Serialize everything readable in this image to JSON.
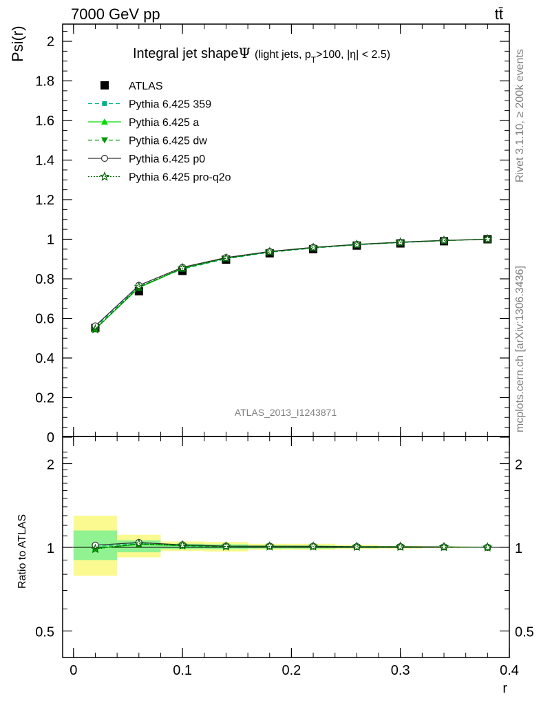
{
  "header": {
    "energy_label": "7000 GeV pp",
    "process_label": "tt̄",
    "rivet_label": "Rivet 3.1.10, ≥ 200k events",
    "mcplots_label": "mcplots.cern.ch [arXiv:1306.3436]"
  },
  "chart_data": [
    {
      "type": "line",
      "title": "Integral jet shape",
      "title_symbol": "Ψ",
      "subtitle": "(light jets, p",
      "subtitle_sub": "T",
      "subtitle_tail": ">100, |η| < 2.5)",
      "watermark": "ATLAS_2013_I1243871",
      "xlabel": "r",
      "ylabel": "Psi(r)",
      "xlim": [
        -0.01,
        0.4
      ],
      "ylim": [
        0,
        2.1
      ],
      "x_ticks": [
        0,
        0.1,
        0.2,
        0.3,
        0.4
      ],
      "x_tick_labels": [
        "0",
        "0.1",
        "0.2",
        "0.3",
        "0.4"
      ],
      "y_ticks": [
        0,
        0.2,
        0.4,
        0.6,
        0.8,
        1,
        1.2,
        1.4,
        1.6,
        1.8,
        2
      ],
      "y_tick_labels": [
        "0",
        "0.2",
        "0.4",
        "0.6",
        "0.8",
        "1",
        "1.2",
        "1.4",
        "1.6",
        "1.8",
        "2"
      ],
      "x": [
        0.02,
        0.06,
        0.1,
        0.14,
        0.18,
        0.22,
        0.26,
        0.3,
        0.34,
        0.38
      ],
      "legend": [
        "ATLAS",
        "Pythia 6.425 359",
        "Pythia 6.425 a",
        "Pythia 6.425 dw",
        "Pythia 6.425 p0",
        "Pythia 6.425 pro-q2o"
      ],
      "series": [
        {
          "name": "ATLAS",
          "color": "#000000",
          "marker": "square",
          "line": "none",
          "values": [
            0.552,
            0.737,
            0.84,
            0.897,
            0.929,
            0.95,
            0.968,
            0.979,
            0.99,
            1.0
          ]
        },
        {
          "name": "Pythia 6.425 359",
          "color": "#00b38a",
          "marker": "small-square",
          "line": "dashed",
          "values": [
            0.556,
            0.761,
            0.849,
            0.901,
            0.934,
            0.955,
            0.972,
            0.983,
            0.993,
            1.0
          ]
        },
        {
          "name": "Pythia 6.425 a",
          "color": "#00dd00",
          "marker": "triangle-up",
          "line": "solid",
          "values": [
            0.546,
            0.755,
            0.852,
            0.905,
            0.937,
            0.958,
            0.974,
            0.985,
            0.994,
            1.0
          ]
        },
        {
          "name": "Pythia 6.425 dw",
          "color": "#009900",
          "marker": "triangle-down",
          "line": "dashed",
          "values": [
            0.548,
            0.758,
            0.853,
            0.904,
            0.936,
            0.957,
            0.973,
            0.984,
            0.993,
            1.0
          ]
        },
        {
          "name": "Pythia 6.425 p0",
          "color": "#333333",
          "marker": "open-circle",
          "line": "solid",
          "values": [
            0.562,
            0.767,
            0.858,
            0.907,
            0.938,
            0.959,
            0.974,
            0.985,
            0.994,
            1.0
          ]
        },
        {
          "name": "Pythia 6.425 pro-q2o",
          "color": "#006600",
          "marker": "open-star",
          "line": "dotted",
          "values": [
            0.545,
            0.759,
            0.854,
            0.904,
            0.936,
            0.957,
            0.973,
            0.984,
            0.993,
            1.0
          ]
        }
      ]
    },
    {
      "type": "line",
      "ylabel": "Ratio to ATLAS",
      "xlabel": "r",
      "yscale": "log",
      "ylim": [
        0.4,
        2.3
      ],
      "y_ticks": [
        0.5,
        1,
        2
      ],
      "y_tick_labels": [
        "0.5",
        "1",
        "2"
      ],
      "bin_edges": [
        0,
        0.04,
        0.08,
        0.12,
        0.16,
        0.2,
        0.24,
        0.28,
        0.32,
        0.36,
        0.4
      ],
      "band_inner": [
        [
          0.9,
          1.15
        ],
        [
          0.96,
          1.06
        ],
        [
          0.985,
          1.03
        ],
        [
          0.985,
          1.025
        ],
        [
          0.99,
          1.015
        ],
        [
          0.99,
          1.015
        ],
        [
          0.993,
          1.012
        ],
        [
          0.995,
          1.008
        ],
        [
          0.997,
          1.005
        ],
        [
          0.999,
          1.001
        ]
      ],
      "band_outer": [
        [
          0.79,
          1.3
        ],
        [
          0.92,
          1.11
        ],
        [
          0.97,
          1.05
        ],
        [
          0.965,
          1.045
        ],
        [
          0.98,
          1.03
        ],
        [
          0.98,
          1.03
        ],
        [
          0.985,
          1.02
        ],
        [
          0.99,
          1.012
        ],
        [
          0.995,
          1.007
        ],
        [
          0.999,
          1.001
        ]
      ],
      "band_colors": {
        "inner": "#90f290",
        "outer": "#fafa90"
      },
      "series": [
        {
          "name": "Pythia 6.425 359",
          "values": [
            1.007,
            1.033,
            1.011,
            1.004,
            1.005,
            1.005,
            1.004,
            1.004,
            1.003,
            1.0
          ]
        },
        {
          "name": "Pythia 6.425 a",
          "values": [
            0.989,
            1.024,
            1.014,
            1.009,
            1.009,
            1.008,
            1.006,
            1.006,
            1.004,
            1.0
          ]
        },
        {
          "name": "Pythia 6.425 dw",
          "values": [
            0.993,
            1.028,
            1.015,
            1.008,
            1.008,
            1.007,
            1.005,
            1.005,
            1.003,
            1.0
          ]
        },
        {
          "name": "Pythia 6.425 p0",
          "values": [
            1.018,
            1.041,
            1.021,
            1.011,
            1.01,
            1.009,
            1.006,
            1.006,
            1.004,
            1.0
          ]
        },
        {
          "name": "Pythia 6.425 pro-q2o",
          "values": [
            0.987,
            1.03,
            1.017,
            1.008,
            1.008,
            1.007,
            1.005,
            1.005,
            1.003,
            1.0
          ]
        }
      ]
    }
  ]
}
